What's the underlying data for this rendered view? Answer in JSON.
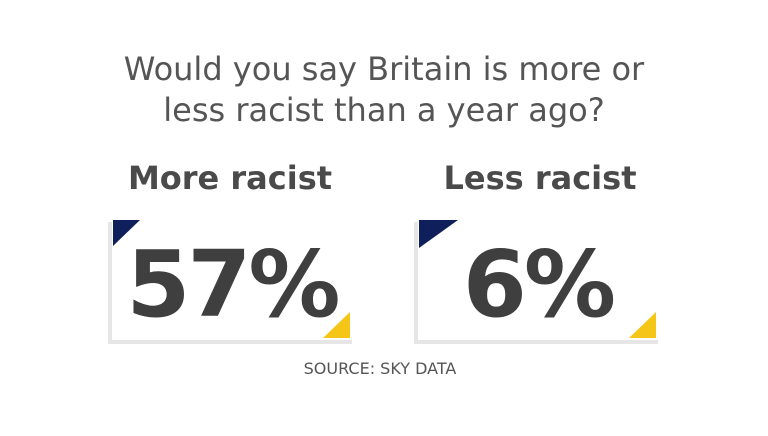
{
  "header": {
    "title_lines": [
      "Would you say Britain is more or",
      "less racist than a year ago?"
    ]
  },
  "cards": [
    {
      "label": "More racist",
      "value": "57%"
    },
    {
      "label": "Less racist",
      "value": "6%"
    }
  ],
  "footer": {
    "source": "SOURCE: SKY DATA"
  }
}
